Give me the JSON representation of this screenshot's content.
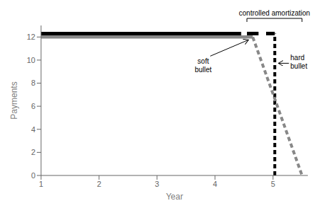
{
  "chart_data": {
    "type": "line",
    "xlabel": "Year",
    "ylabel": "Payments",
    "xlim": [
      1,
      5.6
    ],
    "ylim": [
      0,
      13
    ],
    "xticks": [
      1,
      2,
      3,
      4,
      5
    ],
    "yticks": [
      0,
      2,
      4,
      6,
      8,
      10,
      12
    ],
    "series": [
      {
        "x": [
          1,
          4.65
        ],
        "values": [
          12.0,
          12.0
        ],
        "color": "#888888",
        "line_style": "solid"
      },
      {
        "x": [
          1,
          4.45
        ],
        "values": [
          12.3,
          12.3
        ],
        "color": "black",
        "line_style": "solid"
      },
      {
        "x": [
          4.55,
          4.75
        ],
        "values": [
          12.3,
          12.3
        ],
        "color": "black",
        "line_style": "solid"
      },
      {
        "x": [
          4.88,
          5.03
        ],
        "values": [
          12.3,
          12.3
        ],
        "color": "black",
        "line_style": "solid"
      },
      {
        "x": [
          5.03,
          5.03
        ],
        "values": [
          0,
          12.3
        ],
        "color": "black",
        "line_style": "dashed"
      },
      {
        "x": [
          4.65,
          5.5
        ],
        "values": [
          12.0,
          0.0
        ],
        "color": "#888888",
        "line_style": "dashed"
      }
    ],
    "annotations": [
      "controlled amortization",
      "soft\nbullet",
      "hard\nbullet"
    ]
  }
}
